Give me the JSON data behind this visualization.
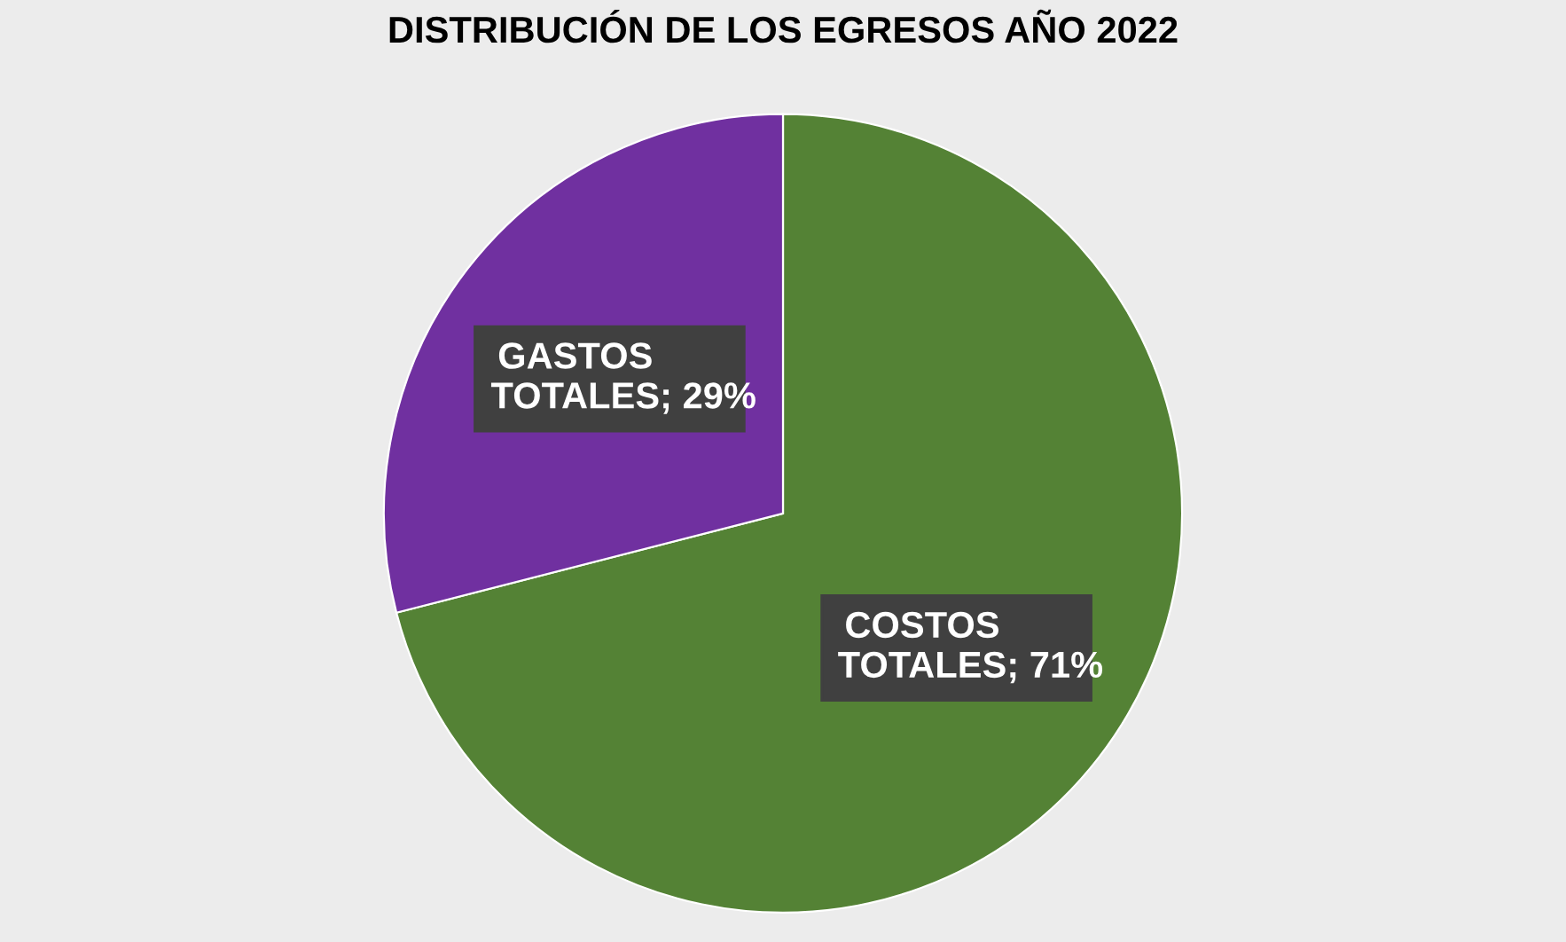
{
  "chart_data": {
    "type": "pie",
    "title": "DISTRIBUCIÓN DE LOS EGRESOS AÑO 2022",
    "categories": [
      "COSTOS TOTALES",
      "GASTOS TOTALES"
    ],
    "values": [
      71,
      29
    ],
    "colors": [
      "#548235",
      "#7030a0"
    ],
    "value_labels": [
      "; 71%",
      "; 29%"
    ],
    "legend": false
  }
}
